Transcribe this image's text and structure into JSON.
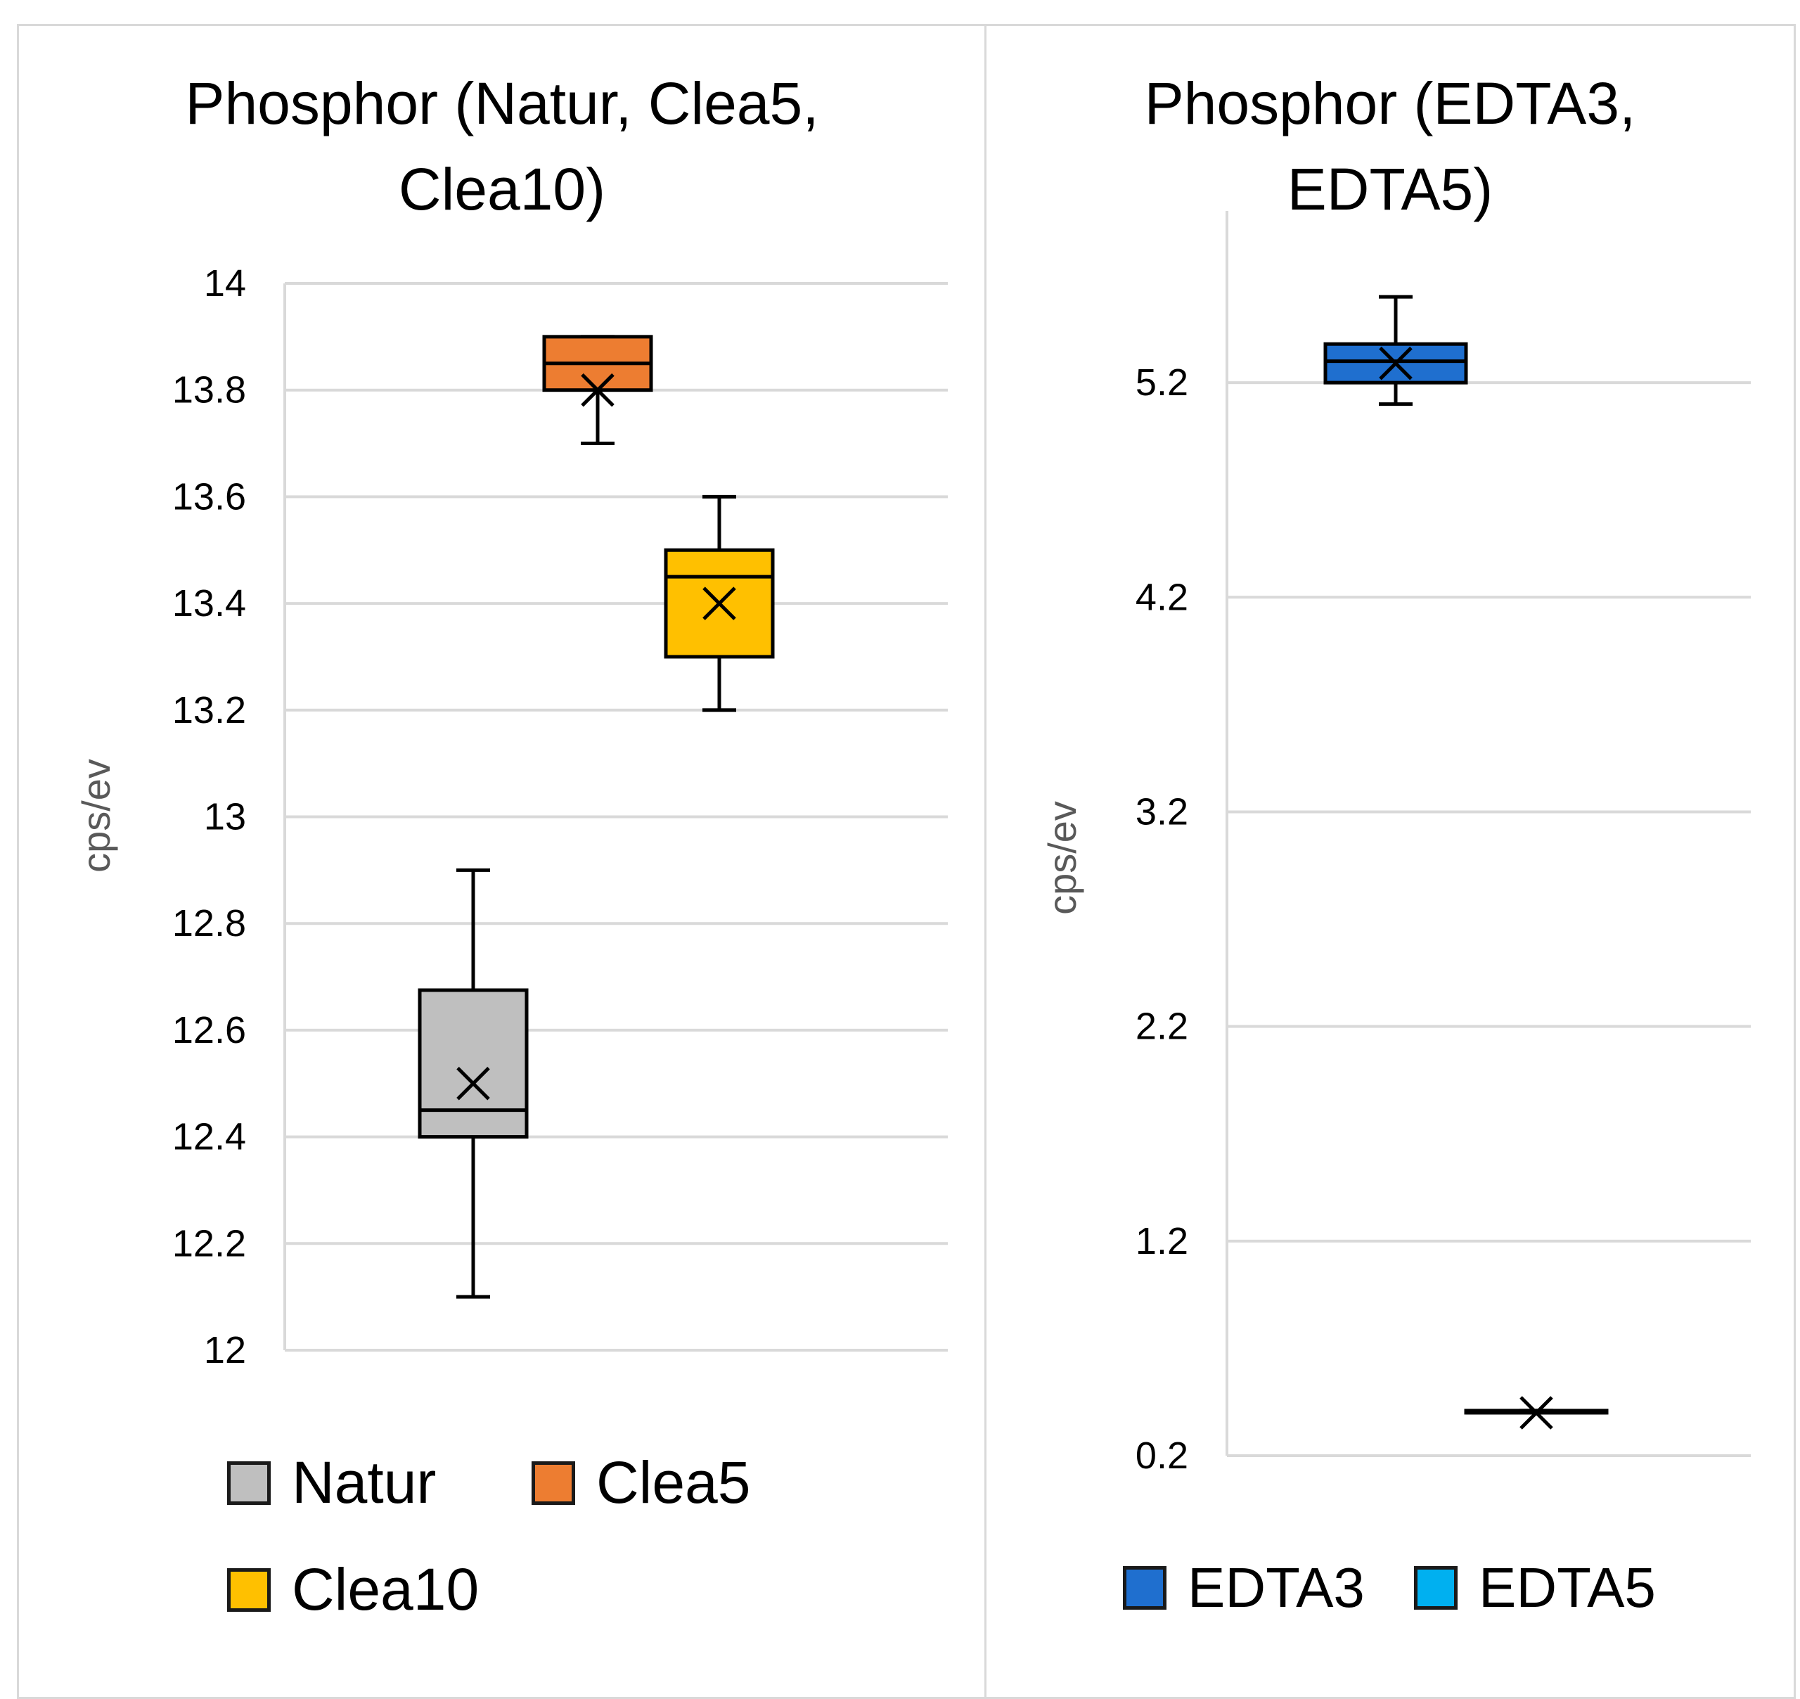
{
  "chart_data": [
    {
      "type": "box",
      "title": "Phosphor (Natur, Clea5, Clea10)",
      "ylabel": "cps/ev",
      "ylim": [
        12,
        14
      ],
      "yticks": [
        "12",
        "12.2",
        "12.4",
        "12.6",
        "12.8",
        "13",
        "13.2",
        "13.4",
        "13.6",
        "13.8",
        "14"
      ],
      "grid": true,
      "legend_position": "bottom",
      "series": [
        {
          "name": "Natur",
          "color": "#bfbfbf",
          "min": 12.1,
          "q1": 12.4,
          "median": 12.45,
          "q3": 12.675,
          "max": 12.9,
          "mean": 12.5
        },
        {
          "name": "Clea5",
          "color": "#ed7d31",
          "min": 13.7,
          "q1": 13.8,
          "median": 13.85,
          "q3": 13.9,
          "max": 13.9,
          "mean": 13.8
        },
        {
          "name": "Clea10",
          "color": "#ffc000",
          "min": 13.2,
          "q1": 13.3,
          "median": 13.45,
          "q3": 13.5,
          "max": 13.6,
          "mean": 13.4
        }
      ]
    },
    {
      "type": "box",
      "title": "Phosphor (EDTA3, EDTA5)",
      "ylabel": "cps/ev",
      "ylim": [
        0.2,
        6.0
      ],
      "yticks": [
        "0.2",
        "1.2",
        "2.2",
        "3.2",
        "4.2",
        "5.2"
      ],
      "grid": true,
      "legend_position": "bottom",
      "series": [
        {
          "name": "EDTA3",
          "color": "#1f6fcf",
          "min": 5.1,
          "q1": 5.2,
          "median": 5.3,
          "q3": 5.38,
          "max": 5.6,
          "mean": 5.29
        },
        {
          "name": "EDTA5",
          "color": "#00b0f0",
          "min": 0.4,
          "q1": 0.4,
          "median": 0.4,
          "q3": 0.41,
          "max": 0.41,
          "mean": 0.4
        }
      ]
    }
  ]
}
